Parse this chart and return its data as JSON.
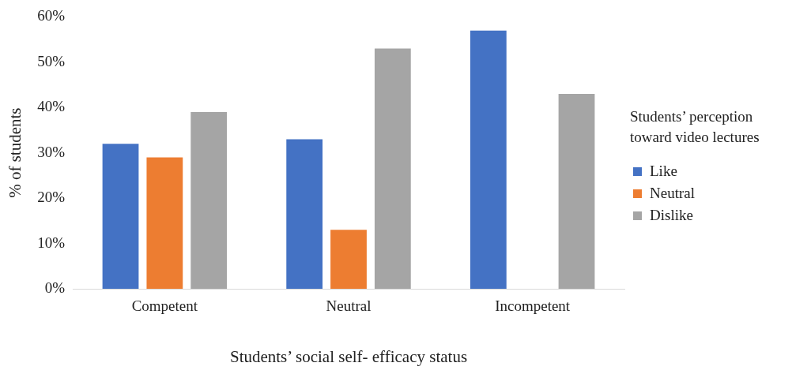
{
  "chart_data": {
    "type": "bar",
    "xlabel": "Students’ social self- efficacy status",
    "ylabel": "% of students",
    "legend_title": "Students’ perception toward video lectures",
    "categories": [
      "Competent",
      "Neutral",
      "Incompetent"
    ],
    "series": [
      {
        "name": "Like",
        "color": "#4472c4",
        "values": [
          32,
          33,
          57
        ]
      },
      {
        "name": "Neutral",
        "color": "#ed7d31",
        "values": [
          29,
          13,
          0
        ]
      },
      {
        "name": "Dislike",
        "color": "#a5a5a5",
        "values": [
          39,
          53,
          43
        ]
      }
    ],
    "ylim": [
      0,
      60
    ],
    "yticks": [
      {
        "value": 0,
        "label": "0%"
      },
      {
        "value": 10,
        "label": "10%"
      },
      {
        "value": 20,
        "label": "20%"
      },
      {
        "value": 30,
        "label": "30%"
      },
      {
        "value": 40,
        "label": "40%"
      },
      {
        "value": 50,
        "label": "50%"
      },
      {
        "value": 60,
        "label": "60%"
      }
    ],
    "grid": false,
    "legend": "right"
  }
}
